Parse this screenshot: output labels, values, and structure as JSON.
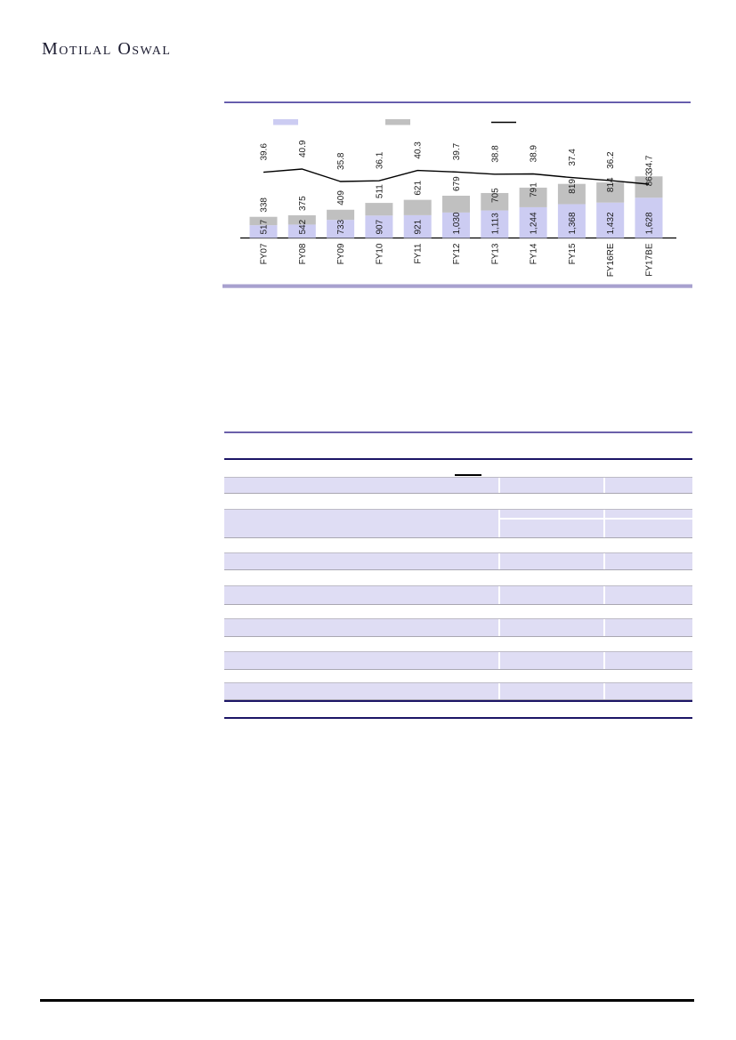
{
  "page": {
    "logo_text": "Motilal Oswal"
  },
  "chart_data": {
    "type": "bar",
    "subtype": "stacked-column-with-line",
    "title": "",
    "xlabel": "",
    "ylabel": "",
    "grid": false,
    "legend_position": "top",
    "categories": [
      "FY07",
      "FY08",
      "FY09",
      "FY10",
      "FY11",
      "FY12",
      "FY13",
      "FY14",
      "FY15",
      "FY16RE",
      "FY17BE"
    ],
    "series": [
      {
        "name": "base-segment",
        "kind": "bar",
        "color": "#ccccf2",
        "values": [
          517,
          542,
          733,
          907,
          921,
          1030,
          1113,
          1244,
          1368,
          1432,
          1628
        ],
        "labels": [
          "517",
          "542",
          "733",
          "907",
          "921",
          "1,030",
          "1,113",
          "1,244",
          "1,368",
          "1,432",
          "1,628"
        ]
      },
      {
        "name": "top-segment",
        "kind": "bar",
        "color": "#c0c0c0",
        "values": [
          338,
          375,
          409,
          511,
          621,
          679,
          705,
          791,
          819,
          814,
          863
        ],
        "labels": [
          "338",
          "375",
          "409",
          "511",
          "621",
          "679",
          "705",
          "791",
          "819",
          "814",
          "863"
        ]
      },
      {
        "name": "percent-line",
        "kind": "line",
        "color": "#000000",
        "values": [
          39.6,
          40.9,
          35.8,
          36.1,
          40.3,
          39.7,
          38.8,
          38.9,
          37.4,
          36.2,
          34.7
        ],
        "labels": [
          "39.6",
          "40.9",
          "35.8",
          "36.1",
          "40.3",
          "39.7",
          "38.8",
          "38.9",
          "37.4",
          "36.2",
          "34.7"
        ]
      }
    ],
    "legend": {
      "entries": [
        {
          "swatch_color": "#ccccf2",
          "swatch_type": "rect",
          "label": ""
        },
        {
          "swatch_color": "#c0c0c0",
          "swatch_type": "rect",
          "label": ""
        },
        {
          "swatch_color": "#000000",
          "swatch_type": "line",
          "label": ""
        }
      ]
    },
    "decor": {
      "top_rule_color": "#5a50a6",
      "bottom_band_color": "#a8a1cf",
      "axis_color": "#000000",
      "label_color": "#1a1a1a"
    }
  },
  "table": {
    "visible_text": "",
    "row_fill_color": "#dfddf4",
    "rule_colors": {
      "navy": "#1c1566",
      "purple": "#6b60aa",
      "black": "#000000"
    }
  }
}
